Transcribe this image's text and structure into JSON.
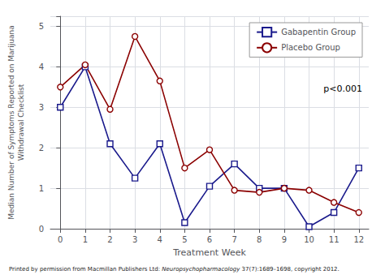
{
  "chart_data": {
    "type": "line",
    "xlabel": "Treatment Week",
    "ylabel": "Median Number of Symptoms Reported on Marijuana\nWithdrawal Checklist",
    "xlim": [
      -0.4,
      12.4
    ],
    "xticks": [
      0,
      1,
      2,
      3,
      4,
      5,
      6,
      7,
      8,
      9,
      10,
      11,
      12
    ],
    "ylim": [
      0,
      5.25
    ],
    "yticks": [
      0,
      1,
      2,
      3,
      4,
      5
    ],
    "grid": true,
    "legend": "upper right",
    "series": [
      {
        "name": "Gabapentin Group",
        "color": "#1a1a8c",
        "marker": "square",
        "x": [
          0,
          1,
          2,
          3,
          4,
          5,
          6,
          7,
          8,
          9,
          10,
          11,
          12
        ],
        "values": [
          3.0,
          4.0,
          2.1,
          1.25,
          2.1,
          0.15,
          1.05,
          1.6,
          1.0,
          1.0,
          0.05,
          0.4,
          1.5
        ]
      },
      {
        "name": "Placebo Group",
        "color": "#8b0000",
        "marker": "circle",
        "x": [
          0,
          1,
          2,
          3,
          4,
          5,
          6,
          7,
          8,
          9,
          10,
          11,
          12
        ],
        "values": [
          3.5,
          4.05,
          2.95,
          4.75,
          3.65,
          1.5,
          1.95,
          0.95,
          0.9,
          1.0,
          0.95,
          0.65,
          0.4
        ]
      }
    ],
    "annotations": [
      "p<0.001"
    ],
    "footnote": {
      "pre": "Printed by permission from Macmillan Publishers Ltd: ",
      "italic": "Neuropsychopharmacology",
      "post": " 37(7):1689–1698, copyright 2012."
    }
  }
}
